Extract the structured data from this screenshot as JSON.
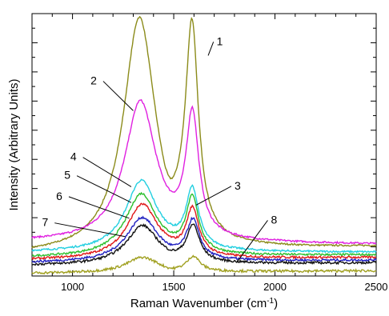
{
  "chart_data": {
    "type": "line",
    "xlabel": "Raman Wavenumber (cm",
    "xlabel_sup": "-1",
    "xlabel_tail": ")",
    "ylabel": "Intensity (Arbitrary Units)",
    "xlim": [
      800,
      2500
    ],
    "ylim": [
      0,
      100
    ],
    "x_ticks": [
      1000,
      1500,
      2000,
      2500
    ],
    "x_tick_labels": [
      "1000",
      "1500",
      "2000",
      "2500"
    ],
    "y_tick_labels_shown": false,
    "grid": false,
    "legend": "none",
    "series": [
      {
        "label": "1",
        "color": "#8b8b1a",
        "d_peak": 97,
        "d_pos": 1330,
        "g_peak": 88,
        "g_pos": 1590,
        "valley": 38,
        "left": 8,
        "right": 11,
        "label_pos": [
          1670,
          84
        ],
        "label_text_pos": [
          1712,
          88
        ]
      },
      {
        "label": "2",
        "color": "#e020e0",
        "d_peak": 66,
        "d_pos": 1335,
        "g_peak": 58,
        "g_pos": 1592,
        "valley": 33,
        "left": 13,
        "right": 12,
        "label_pos": [
          1300,
          63
        ],
        "label_text_pos": [
          1120,
          73
        ]
      },
      {
        "label": "3",
        "color": "#22cfe0",
        "d_peak": 36,
        "d_pos": 1340,
        "g_peak": 31,
        "g_pos": 1592,
        "valley": 20,
        "left": 9,
        "right": 9,
        "label_pos": [
          1610,
          27
        ],
        "label_text_pos": [
          1800,
          33
        ]
      },
      {
        "label": "4",
        "color": "#2bbf2b",
        "d_peak": 31,
        "d_pos": 1340,
        "g_peak": 28,
        "g_pos": 1592,
        "valley": 17,
        "left": 7,
        "right": 8,
        "label_pos": [
          1290,
          34
        ],
        "label_text_pos": [
          1020,
          44
        ]
      },
      {
        "label": "5",
        "color": "#e01818",
        "d_peak": 27,
        "d_pos": 1345,
        "g_peak": 24,
        "g_pos": 1593,
        "valley": 15,
        "left": 6,
        "right": 7,
        "label_pos": [
          1290,
          28
        ],
        "label_text_pos": [
          990,
          37
        ]
      },
      {
        "label": "6",
        "color": "#2020c0",
        "d_peak": 22,
        "d_pos": 1345,
        "g_peak": 20,
        "g_pos": 1595,
        "valley": 12,
        "left": 5,
        "right": 6,
        "label_pos": [
          1280,
          22
        ],
        "label_text_pos": [
          950,
          29
        ]
      },
      {
        "label": "7",
        "color": "#111111",
        "d_peak": 19,
        "d_pos": 1345,
        "g_peak": 18,
        "g_pos": 1596,
        "valley": 10,
        "left": 4,
        "right": 5,
        "label_pos": [
          1260,
          15
        ],
        "label_text_pos": [
          880,
          19
        ]
      },
      {
        "label": "8",
        "color": "#a0a020",
        "d_peak": 7,
        "d_pos": 1345,
        "g_peak": 7,
        "g_pos": 1598,
        "valley": 3,
        "left": 1,
        "right": 2,
        "label_pos": [
          1810,
          5
        ],
        "label_text_pos": [
          1980,
          20
        ]
      }
    ]
  }
}
